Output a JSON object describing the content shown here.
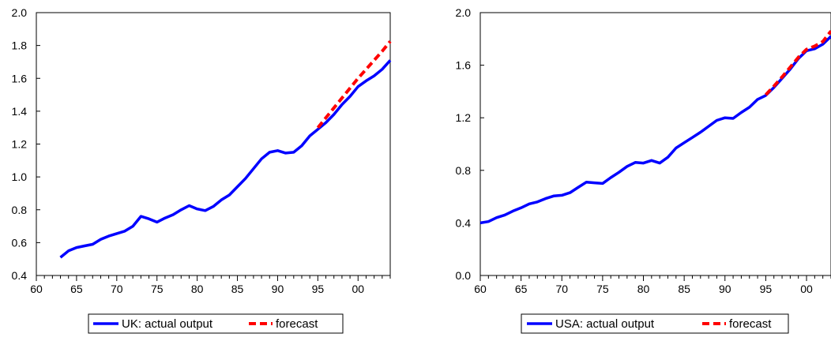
{
  "chart_data": [
    {
      "type": "line",
      "xlim": [
        1960,
        2004
      ],
      "ylim": [
        0.4,
        2.0
      ],
      "x_ticks": [
        1960,
        1965,
        1970,
        1975,
        1980,
        1985,
        1990,
        1995,
        2000
      ],
      "x_tick_labels": [
        "60",
        "65",
        "70",
        "75",
        "80",
        "85",
        "90",
        "95",
        "00"
      ],
      "y_ticks": [
        0.4,
        0.6,
        0.8,
        1.0,
        1.2,
        1.4,
        1.6,
        1.8,
        2.0
      ],
      "y_tick_labels": [
        "0.4",
        "0.6",
        "0.8",
        "1.0",
        "1.2",
        "1.4",
        "1.6",
        "1.8",
        "2.0"
      ],
      "grid": false,
      "legend_position": "bottom",
      "series": [
        {
          "name": "UK: actual output",
          "color": "#0000ff",
          "style": "solid",
          "x": [
            1963,
            1964,
            1965,
            1966,
            1967,
            1968,
            1969,
            1970,
            1971,
            1972,
            1973,
            1974,
            1975,
            1976,
            1977,
            1978,
            1979,
            1980,
            1981,
            1982,
            1983,
            1984,
            1985,
            1986,
            1987,
            1988,
            1989,
            1990,
            1991,
            1992,
            1993,
            1994,
            1995,
            1996,
            1997,
            1998,
            1999,
            2000,
            2001,
            2002,
            2003,
            2004
          ],
          "y": [
            0.51,
            0.55,
            0.57,
            0.58,
            0.59,
            0.62,
            0.64,
            0.655,
            0.67,
            0.7,
            0.76,
            0.745,
            0.725,
            0.75,
            0.77,
            0.8,
            0.825,
            0.805,
            0.795,
            0.82,
            0.86,
            0.89,
            0.94,
            0.99,
            1.05,
            1.11,
            1.15,
            1.16,
            1.145,
            1.15,
            1.19,
            1.25,
            1.29,
            1.33,
            1.38,
            1.44,
            1.49,
            1.55,
            1.585,
            1.615,
            1.655,
            1.71
          ]
        },
        {
          "name": "forecast",
          "color": "#ff0000",
          "style": "dashed",
          "x": [
            1995,
            1996,
            1997,
            1998,
            1999,
            2000,
            2001,
            2002,
            2003,
            2004
          ],
          "y": [
            1.3,
            1.36,
            1.42,
            1.48,
            1.54,
            1.6,
            1.655,
            1.71,
            1.765,
            1.825
          ]
        }
      ]
    },
    {
      "type": "line",
      "xlim": [
        1960,
        2003
      ],
      "ylim": [
        0.0,
        2.0
      ],
      "x_ticks": [
        1960,
        1965,
        1970,
        1975,
        1980,
        1985,
        1990,
        1995,
        2000
      ],
      "x_tick_labels": [
        "60",
        "65",
        "70",
        "75",
        "80",
        "85",
        "90",
        "95",
        "00"
      ],
      "y_ticks": [
        0.0,
        0.4,
        0.8,
        1.2,
        1.6,
        2.0
      ],
      "y_tick_labels": [
        "0.0",
        "0.4",
        "0.8",
        "1.2",
        "1.6",
        "2.0"
      ],
      "grid": false,
      "legend_position": "bottom",
      "series": [
        {
          "name": "USA: actual output",
          "color": "#0000ff",
          "style": "solid",
          "x": [
            1960,
            1961,
            1962,
            1963,
            1964,
            1965,
            1966,
            1967,
            1968,
            1969,
            1970,
            1971,
            1972,
            1973,
            1974,
            1975,
            1976,
            1977,
            1978,
            1979,
            1980,
            1981,
            1982,
            1983,
            1984,
            1985,
            1986,
            1987,
            1988,
            1989,
            1990,
            1991,
            1992,
            1993,
            1994,
            1995,
            1996,
            1997,
            1998,
            1999,
            2000,
            2001,
            2002,
            2003
          ],
          "y": [
            0.4,
            0.41,
            0.44,
            0.46,
            0.49,
            0.515,
            0.545,
            0.56,
            0.585,
            0.605,
            0.61,
            0.63,
            0.67,
            0.71,
            0.705,
            0.7,
            0.745,
            0.785,
            0.83,
            0.86,
            0.855,
            0.875,
            0.855,
            0.9,
            0.97,
            1.01,
            1.05,
            1.09,
            1.135,
            1.18,
            1.2,
            1.195,
            1.24,
            1.28,
            1.34,
            1.37,
            1.43,
            1.5,
            1.57,
            1.65,
            1.71,
            1.725,
            1.76,
            1.82
          ]
        },
        {
          "name": "forecast",
          "color": "#ff0000",
          "style": "dashed",
          "x": [
            1995,
            1996,
            1997,
            1998,
            1999,
            2000,
            2001,
            2002,
            2003
          ],
          "y": [
            1.375,
            1.44,
            1.51,
            1.585,
            1.66,
            1.72,
            1.745,
            1.78,
            1.86
          ]
        }
      ]
    }
  ]
}
